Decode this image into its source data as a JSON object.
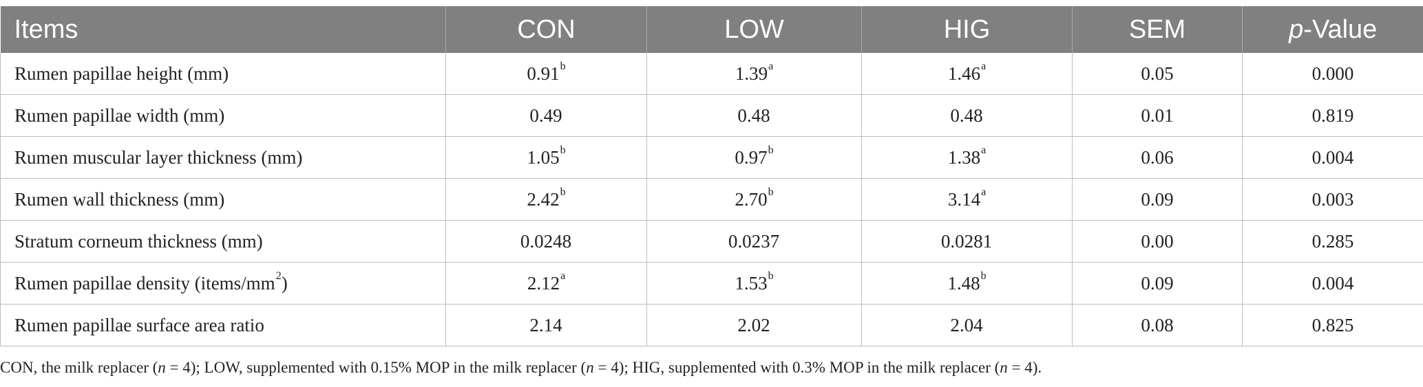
{
  "table": {
    "headers": [
      {
        "text": "Items"
      },
      {
        "text": "CON"
      },
      {
        "text": "LOW"
      },
      {
        "text": "HIG"
      },
      {
        "text": "SEM"
      },
      {
        "italic": "p",
        "text": "-Value"
      }
    ],
    "rows": [
      {
        "item": "Rumen papillae height (mm)",
        "con": "0.91",
        "con_sup": "b",
        "low": "1.39",
        "low_sup": "a",
        "hig": "1.46",
        "hig_sup": "a",
        "sem": "0.05",
        "p": "0.000"
      },
      {
        "item": "Rumen papillae width (mm)",
        "con": "0.49",
        "con_sup": "",
        "low": "0.48",
        "low_sup": "",
        "hig": "0.48",
        "hig_sup": "",
        "sem": "0.01",
        "p": "0.819"
      },
      {
        "item": "Rumen muscular layer thickness (mm)",
        "con": "1.05",
        "con_sup": "b",
        "low": "0.97",
        "low_sup": "b",
        "hig": "1.38",
        "hig_sup": "a",
        "sem": "0.06",
        "p": "0.004"
      },
      {
        "item": "Rumen wall thickness (mm)",
        "con": "2.42",
        "con_sup": "b",
        "low": "2.70",
        "low_sup": "b",
        "hig": "3.14",
        "hig_sup": "a",
        "sem": "0.09",
        "p": "0.003"
      },
      {
        "item": "Stratum corneum thickness (mm)",
        "con": "0.0248",
        "con_sup": "",
        "low": "0.0237",
        "low_sup": "",
        "hig": "0.0281",
        "hig_sup": "",
        "sem": "0.00",
        "p": "0.285"
      },
      {
        "item": "Rumen papillae density (items/mm",
        "item_sup": "2",
        "item_suffix": ")",
        "con": "2.12",
        "con_sup": "a",
        "low": "1.53",
        "low_sup": "b",
        "hig": "1.48",
        "hig_sup": "b",
        "sem": "0.09",
        "p": "0.004"
      },
      {
        "item": "Rumen papillae surface area ratio",
        "con": "2.14",
        "con_sup": "",
        "low": "2.02",
        "low_sup": "",
        "hig": "2.04",
        "hig_sup": "",
        "sem": "0.08",
        "p": "0.825"
      }
    ]
  },
  "footnote": {
    "parts": [
      {
        "text": "CON, the milk replacer ("
      },
      {
        "italic": "n"
      },
      {
        "text": " = 4); LOW, supplemented with 0.15% MOP in the milk replacer ("
      },
      {
        "italic": "n"
      },
      {
        "text": " = 4); HIG, supplemented with 0.3% MOP in the milk replacer ("
      },
      {
        "italic": "n"
      },
      {
        "text": " = 4)."
      }
    ]
  },
  "colors": {
    "header_bg": "#808080",
    "header_text": "#ffffff",
    "grid": "#bdbdbd"
  }
}
